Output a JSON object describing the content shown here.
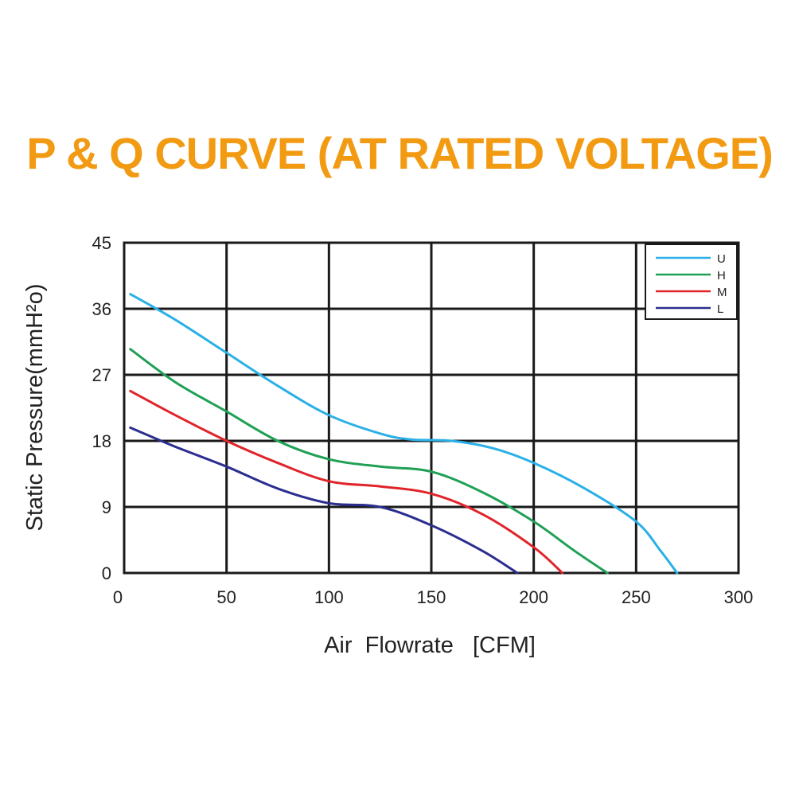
{
  "colors": {
    "title": "#f29a12",
    "grid": "#1a1a1a",
    "text": "#222222"
  },
  "chart_data": {
    "type": "line",
    "title": "P & Q CURVE (AT RATED VOLTAGE)",
    "xlabel": "Air  Flowrate   [CFM]",
    "ylabel": "Static Pressure(mmH²o)",
    "xlim": [
      0,
      300
    ],
    "ylim": [
      0,
      45
    ],
    "xticks": [
      0,
      50,
      100,
      150,
      200,
      250,
      300
    ],
    "yticks": [
      0,
      9,
      18,
      27,
      36,
      45
    ],
    "grid": true,
    "legend_position": "top-right",
    "series": [
      {
        "name": "U",
        "color": "#2ab0e6",
        "points": [
          [
            3,
            38
          ],
          [
            25,
            34.5
          ],
          [
            50,
            30
          ],
          [
            75,
            25.5
          ],
          [
            100,
            21.5
          ],
          [
            125,
            19
          ],
          [
            140,
            18.2
          ],
          [
            160,
            18
          ],
          [
            180,
            17
          ],
          [
            200,
            15
          ],
          [
            225,
            11.5
          ],
          [
            250,
            7
          ],
          [
            262,
            3
          ],
          [
            270,
            0
          ]
        ]
      },
      {
        "name": "H",
        "color": "#1fa055",
        "points": [
          [
            3,
            30.5
          ],
          [
            25,
            26
          ],
          [
            50,
            22
          ],
          [
            75,
            18
          ],
          [
            100,
            15.5
          ],
          [
            125,
            14.5
          ],
          [
            150,
            13.8
          ],
          [
            175,
            11
          ],
          [
            200,
            7
          ],
          [
            220,
            3
          ],
          [
            236,
            0
          ]
        ]
      },
      {
        "name": "M",
        "color": "#e0242a",
        "points": [
          [
            3,
            24.8
          ],
          [
            25,
            21.5
          ],
          [
            50,
            18
          ],
          [
            75,
            15
          ],
          [
            100,
            12.5
          ],
          [
            125,
            11.8
          ],
          [
            150,
            10.8
          ],
          [
            175,
            8
          ],
          [
            200,
            3.5
          ],
          [
            214,
            0
          ]
        ]
      },
      {
        "name": "L",
        "color": "#2b2e8f",
        "points": [
          [
            3,
            19.8
          ],
          [
            25,
            17.2
          ],
          [
            50,
            14.5
          ],
          [
            75,
            11.5
          ],
          [
            100,
            9.5
          ],
          [
            125,
            9
          ],
          [
            150,
            6.5
          ],
          [
            175,
            3
          ],
          [
            192,
            0
          ]
        ]
      }
    ]
  }
}
